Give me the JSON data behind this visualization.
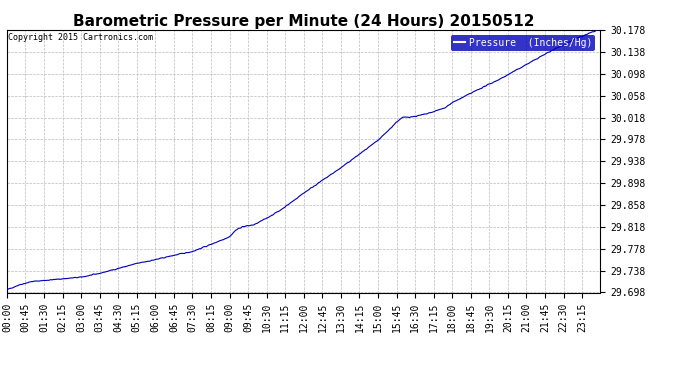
{
  "title": "Barometric Pressure per Minute (24 Hours) 20150512",
  "copyright": "Copyright 2015 Cartronics.com",
  "legend_label": "Pressure  (Inches/Hg)",
  "legend_bg": "#0000bb",
  "legend_fg": "#ffffff",
  "line_color": "#0000bb",
  "bg_color": "#ffffff",
  "grid_color": "#bbbbbb",
  "title_fontsize": 11,
  "copyright_fontsize": 6,
  "tick_fontsize": 7,
  "y_min": 29.698,
  "y_max": 30.178,
  "y_ticks": [
    29.698,
    29.738,
    29.778,
    29.818,
    29.858,
    29.898,
    29.938,
    29.978,
    30.018,
    30.058,
    30.098,
    30.138,
    30.178
  ],
  "x_tick_labels": [
    "00:00",
    "00:45",
    "01:30",
    "02:15",
    "03:00",
    "03:45",
    "04:30",
    "05:15",
    "06:00",
    "06:45",
    "07:30",
    "08:15",
    "09:00",
    "09:45",
    "10:30",
    "11:15",
    "12:00",
    "12:45",
    "13:30",
    "14:15",
    "15:00",
    "15:45",
    "16:30",
    "17:15",
    "18:00",
    "18:45",
    "19:30",
    "20:15",
    "21:00",
    "21:45",
    "22:30",
    "23:15"
  ],
  "num_minutes": 1440,
  "keypoints_t": [
    0,
    30,
    60,
    90,
    120,
    135,
    150,
    180,
    225,
    270,
    315,
    360,
    405,
    450,
    495,
    540,
    555,
    570,
    585,
    600,
    630,
    660,
    690,
    720,
    765,
    810,
    855,
    900,
    930,
    945,
    960,
    990,
    1020,
    1060,
    1080,
    1140,
    1200,
    1260,
    1320,
    1380,
    1439
  ],
  "keypoints_v": [
    29.703,
    29.712,
    29.718,
    29.72,
    29.722,
    29.723,
    29.724,
    29.726,
    29.733,
    29.742,
    29.751,
    29.758,
    29.766,
    29.773,
    29.786,
    29.8,
    29.812,
    29.818,
    29.82,
    29.822,
    29.834,
    29.847,
    29.863,
    29.88,
    29.903,
    29.926,
    29.951,
    29.976,
    29.998,
    30.01,
    30.018,
    30.02,
    30.025,
    30.035,
    30.045,
    30.068,
    30.09,
    30.115,
    30.14,
    30.162,
    30.18
  ],
  "noise_std": 0.0008,
  "seed": 42
}
